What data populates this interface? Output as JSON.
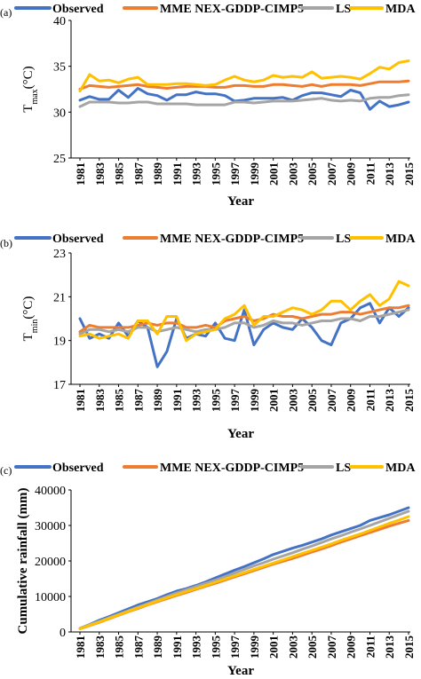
{
  "series_colors": {
    "Observed": "#4472C4",
    "MME NEX-GDDP-CIMP5": "#ED7D31",
    "LS": "#A5A5A5",
    "MDA": "#FFC000"
  },
  "chart_data": [
    {
      "type": "line",
      "panel_label": "(a)",
      "ylabel": "T",
      "ylabel_sub": "max",
      "ylabel_unit": "(°C)",
      "xlabel": "Year",
      "ylim": [
        25,
        40
      ],
      "yticks": [
        "25",
        "30",
        "35",
        "40"
      ],
      "x": [
        1981,
        1982,
        1983,
        1984,
        1985,
        1986,
        1987,
        1988,
        1989,
        1990,
        1991,
        1992,
        1993,
        1994,
        1995,
        1996,
        1997,
        1998,
        1999,
        2000,
        2001,
        2002,
        2003,
        2004,
        2005,
        2006,
        2007,
        2008,
        2009,
        2010,
        2011,
        2012,
        2013,
        2014,
        2015
      ],
      "xtick_labels": [
        "1981",
        "1983",
        "1985",
        "1987",
        "1989",
        "1991",
        "1993",
        "1995",
        "1997",
        "1999",
        "2001",
        "2003",
        "2005",
        "2007",
        "2009",
        "2011",
        "2013",
        "2015"
      ],
      "legend": [
        "Observed",
        "MME NEX-GDDP-CIMP5",
        "LS",
        "MDA"
      ],
      "grid": false,
      "series": [
        {
          "name": "Observed",
          "values": [
            31.3,
            31.7,
            31.4,
            31.4,
            32.4,
            31.6,
            32.6,
            32.0,
            31.8,
            31.3,
            31.9,
            31.9,
            32.2,
            32.0,
            32.0,
            31.8,
            31.2,
            31.3,
            31.5,
            31.5,
            31.5,
            31.6,
            31.3,
            31.8,
            32.1,
            32.1,
            31.9,
            31.7,
            32.4,
            32.1,
            30.3,
            31.2,
            30.6,
            30.8,
            31.1
          ]
        },
        {
          "name": "MME NEX-GDDP-CIMP5",
          "values": [
            32.5,
            32.9,
            32.8,
            32.7,
            32.8,
            32.9,
            33.0,
            32.8,
            32.7,
            32.6,
            32.7,
            32.8,
            32.8,
            32.8,
            32.7,
            32.7,
            32.9,
            32.9,
            32.8,
            32.8,
            33.0,
            33.0,
            32.9,
            32.8,
            33.0,
            32.8,
            33.0,
            33.0,
            33.0,
            32.9,
            33.1,
            33.3,
            33.3,
            33.3,
            33.4
          ]
        },
        {
          "name": "LS",
          "values": [
            30.6,
            31.1,
            31.1,
            31.1,
            31.0,
            31.0,
            31.1,
            31.1,
            30.9,
            30.9,
            30.9,
            30.9,
            30.8,
            30.8,
            30.8,
            30.8,
            31.1,
            31.1,
            31.0,
            31.1,
            31.2,
            31.2,
            31.2,
            31.3,
            31.4,
            31.5,
            31.3,
            31.2,
            31.3,
            31.2,
            31.5,
            31.6,
            31.6,
            31.8,
            31.9
          ]
        },
        {
          "name": "MDA",
          "values": [
            32.3,
            34.1,
            33.4,
            33.5,
            33.2,
            33.6,
            33.8,
            33.0,
            33.0,
            33.0,
            33.1,
            33.1,
            33.0,
            32.9,
            33.0,
            33.5,
            33.9,
            33.5,
            33.3,
            33.5,
            34.0,
            33.8,
            33.9,
            33.8,
            34.4,
            33.7,
            33.8,
            33.9,
            33.8,
            33.6,
            34.2,
            34.9,
            34.7,
            35.4,
            35.6
          ]
        }
      ]
    },
    {
      "type": "line",
      "panel_label": "(b)",
      "ylabel": "T",
      "ylabel_sub": "min",
      "ylabel_unit": "(°C)",
      "xlabel": "Year",
      "ylim": [
        17,
        23
      ],
      "yticks": [
        "17",
        "19",
        "21",
        "23"
      ],
      "x": [
        1981,
        1982,
        1983,
        1984,
        1985,
        1986,
        1987,
        1988,
        1989,
        1990,
        1991,
        1992,
        1993,
        1994,
        1995,
        1996,
        1997,
        1998,
        1999,
        2000,
        2001,
        2002,
        2003,
        2004,
        2005,
        2006,
        2007,
        2008,
        2009,
        2010,
        2011,
        2012,
        2013,
        2014,
        2015
      ],
      "xtick_labels": [
        "1981",
        "1983",
        "1985",
        "1987",
        "1989",
        "1991",
        "1993",
        "1995",
        "1997",
        "1999",
        "2001",
        "2003",
        "2005",
        "2007",
        "2009",
        "2011",
        "2013",
        "2015"
      ],
      "legend": [
        "Observed",
        "MME NEX-GDDP-CIMP5",
        "LS",
        "MDA"
      ],
      "grid": false,
      "series": [
        {
          "name": "Observed",
          "values": [
            20.0,
            19.1,
            19.3,
            19.1,
            19.8,
            19.2,
            19.9,
            19.6,
            17.8,
            18.5,
            20.0,
            19.1,
            19.3,
            19.2,
            19.8,
            19.1,
            19.0,
            20.4,
            18.8,
            19.5,
            19.8,
            19.6,
            19.5,
            20.0,
            19.6,
            19.0,
            18.8,
            19.8,
            20.0,
            20.5,
            20.7,
            19.8,
            20.5,
            20.1,
            20.5
          ]
        },
        {
          "name": "MME NEX-GDDP-CIMP5",
          "values": [
            19.4,
            19.7,
            19.6,
            19.6,
            19.6,
            19.6,
            19.7,
            19.8,
            19.7,
            19.8,
            19.8,
            19.6,
            19.6,
            19.7,
            19.6,
            19.9,
            20.0,
            20.1,
            19.9,
            20.0,
            20.2,
            20.1,
            20.1,
            20.0,
            20.1,
            20.2,
            20.2,
            20.3,
            20.3,
            20.2,
            20.3,
            20.4,
            20.5,
            20.5,
            20.6
          ]
        },
        {
          "name": "LS",
          "values": [
            19.3,
            19.5,
            19.5,
            19.4,
            19.5,
            19.4,
            19.6,
            19.6,
            19.4,
            19.5,
            19.6,
            19.5,
            19.4,
            19.5,
            19.5,
            19.6,
            19.8,
            19.8,
            19.6,
            19.7,
            19.9,
            19.8,
            19.8,
            19.7,
            19.8,
            19.9,
            19.9,
            20.0,
            20.0,
            19.9,
            20.1,
            20.1,
            20.2,
            20.3,
            20.4
          ]
        },
        {
          "name": "MDA",
          "values": [
            19.2,
            19.3,
            19.1,
            19.2,
            19.3,
            19.1,
            19.9,
            19.9,
            19.3,
            20.1,
            20.1,
            19.0,
            19.3,
            19.4,
            19.5,
            20.0,
            20.2,
            20.6,
            19.7,
            20.1,
            20.1,
            20.3,
            20.5,
            20.4,
            20.2,
            20.4,
            20.8,
            20.8,
            20.4,
            20.8,
            21.1,
            20.6,
            20.9,
            21.7,
            21.5
          ]
        }
      ]
    },
    {
      "type": "line",
      "panel_label": "(c)",
      "ylabel": "Cumulative rainfall (mm)",
      "xlabel": "Year",
      "ylim": [
        0,
        40000
      ],
      "yticks": [
        "0",
        "10000",
        "20000",
        "30000",
        "40000"
      ],
      "x": [
        1981,
        1982,
        1983,
        1984,
        1985,
        1986,
        1987,
        1988,
        1989,
        1990,
        1991,
        1992,
        1993,
        1994,
        1995,
        1996,
        1997,
        1998,
        1999,
        2000,
        2001,
        2002,
        2003,
        2004,
        2005,
        2006,
        2007,
        2008,
        2009,
        2010,
        2011,
        2012,
        2013,
        2014,
        2015
      ],
      "xtick_labels": [
        "1981",
        "1983",
        "1985",
        "1987",
        "1989",
        "1991",
        "1993",
        "1995",
        "1997",
        "1999",
        "2001",
        "2003",
        "2005",
        "2007",
        "2009",
        "2011",
        "2013",
        "2015"
      ],
      "legend": [
        "Observed",
        "MME NEX-GDDP-CIMP5",
        "LS",
        "MDA"
      ],
      "grid": false,
      "series": [
        {
          "name": "Observed",
          "values": [
            1000,
            2100,
            3300,
            4300,
            5400,
            6500,
            7600,
            8500,
            9400,
            10500,
            11500,
            12200,
            13100,
            14100,
            15200,
            16300,
            17400,
            18400,
            19500,
            20600,
            21800,
            22700,
            23600,
            24400,
            25300,
            26200,
            27300,
            28200,
            29100,
            30000,
            31400,
            32200,
            33000,
            34000,
            35000
          ]
        },
        {
          "name": "MME NEX-GDDP-CIMP5",
          "values": [
            900,
            1800,
            2700,
            3700,
            4700,
            5700,
            6600,
            7600,
            8500,
            9400,
            10300,
            11100,
            12000,
            12900,
            13700,
            14600,
            15500,
            16400,
            17300,
            18200,
            19100,
            19900,
            20700,
            21600,
            22500,
            23400,
            24300,
            25300,
            26200,
            27100,
            28000,
            28900,
            29800,
            30600,
            31400
          ]
        },
        {
          "name": "LS",
          "values": [
            1000,
            2000,
            3000,
            4000,
            5000,
            6000,
            7000,
            8000,
            9000,
            10000,
            11000,
            11900,
            12800,
            13700,
            14600,
            15600,
            16600,
            17600,
            18600,
            19500,
            20500,
            21400,
            22300,
            23300,
            24200,
            25200,
            26200,
            27100,
            28100,
            29000,
            30000,
            31000,
            32000,
            33000,
            34000
          ]
        },
        {
          "name": "MDA",
          "values": [
            900,
            1900,
            2800,
            3800,
            4800,
            5800,
            6800,
            7700,
            8700,
            9600,
            10500,
            11400,
            12200,
            13100,
            14000,
            14900,
            15800,
            16700,
            17600,
            18500,
            19400,
            20300,
            21200,
            22100,
            23000,
            23900,
            24800,
            25800,
            26700,
            27600,
            28600,
            29600,
            30600,
            31500,
            32500
          ]
        }
      ]
    }
  ]
}
